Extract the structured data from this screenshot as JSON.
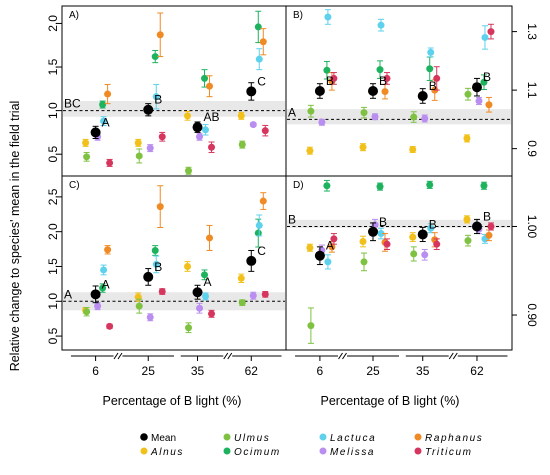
{
  "chart_data": {
    "type": "scatter",
    "ylabel": "Relative change to species' mean in the field trial",
    "xlabel": "Percentage of B light (%)",
    "x_categories": [
      "6",
      "25",
      "35",
      "62"
    ],
    "legend": [
      {
        "name": "Mean",
        "color": "#000000"
      },
      {
        "name": "Alnus",
        "color": "#f2c01a"
      },
      {
        "name": "Ulmus",
        "color": "#7fc242"
      },
      {
        "name": "Ocimum",
        "color": "#1db35e"
      },
      {
        "name": "Lactuca",
        "color": "#5ed1ec"
      },
      {
        "name": "Melissa",
        "color": "#b98ef0"
      },
      {
        "name": "Raphanus",
        "color": "#f08a24"
      },
      {
        "name": "Triticum",
        "color": "#d6365e"
      }
    ],
    "panels": [
      {
        "label": "A)",
        "ylim": [
          0.25,
          2.2
        ],
        "y_ticks": [
          0.5,
          1.0,
          1.5,
          2.0
        ],
        "tick_labels": [
          "0.5",
          "1.0",
          "1.5",
          "2.0"
        ],
        "tick_side": "left",
        "reference_line": 1.0,
        "band": [
          0.93,
          1.11
        ],
        "group_labels": [
          {
            "x": "6",
            "text": "A",
            "pos": "right"
          },
          {
            "x": "6",
            "text": "BC",
            "pos": "band"
          },
          {
            "x": "25",
            "text": "B",
            "pos": "right"
          },
          {
            "x": "35",
            "text": "AB",
            "pos": "right"
          },
          {
            "x": "62",
            "text": "C",
            "pos": "right"
          }
        ],
        "series": [
          {
            "name": "Mean",
            "values": [
              0.75,
              1.01,
              0.81,
              1.22
            ],
            "errors": [
              0.07,
              0.07,
              0.06,
              0.1
            ]
          },
          {
            "name": "Alnus",
            "values": [
              0.63,
              0.63,
              0.94,
              0.94
            ],
            "errors": [
              0.04,
              0.04,
              0.05,
              0.04
            ]
          },
          {
            "name": "Ulmus",
            "values": [
              0.47,
              0.48,
              0.31,
              0.61
            ],
            "errors": [
              0.05,
              0.08,
              0.04,
              0.04
            ]
          },
          {
            "name": "Ocimum",
            "values": [
              1.07,
              1.62,
              1.37,
              1.96
            ],
            "errors": [
              0.04,
              0.07,
              0.1,
              0.18
            ]
          },
          {
            "name": "Lactuca",
            "values": [
              0.88,
              1.16,
              0.78,
              1.59
            ],
            "errors": [
              0.05,
              0.14,
              0.06,
              0.12
            ]
          },
          {
            "name": "Melissa",
            "values": [
              0.7,
              0.57,
              0.7,
              0.84
            ],
            "errors": [
              0.04,
              0.04,
              0.04,
              0.02
            ]
          },
          {
            "name": "Raphanus",
            "values": [
              1.19,
              1.87,
              1.28,
              1.79
            ],
            "errors": [
              0.11,
              0.25,
              0.12,
              0.15
            ]
          },
          {
            "name": "Triticum",
            "values": [
              0.4,
              0.7,
              0.58,
              0.77
            ],
            "errors": [
              0.04,
              0.05,
              0.06,
              0.06
            ]
          }
        ]
      },
      {
        "label": "B)",
        "ylim": [
          0.8065,
          1.3875
        ],
        "y_ticks": [
          0.9,
          1.1,
          1.3
        ],
        "tick_labels": [
          "0.9",
          "1.1",
          "1.3"
        ],
        "tick_side": "right",
        "reference_line": 1.0,
        "band": [
          0.983,
          1.035
        ],
        "group_labels": [
          {
            "x": "6",
            "text": "A",
            "pos": "band"
          },
          {
            "x": "6",
            "text": "B",
            "pos": "right"
          },
          {
            "x": "25",
            "text": "B",
            "pos": "right"
          },
          {
            "x": "35",
            "text": "B",
            "pos": "right"
          },
          {
            "x": "62",
            "text": "B",
            "pos": "right"
          }
        ],
        "series": [
          {
            "name": "Mean",
            "values": [
              1.097,
              1.097,
              1.08,
              1.11
            ],
            "errors": [
              0.025,
              0.025,
              0.025,
              0.03
            ]
          },
          {
            "name": "Alnus",
            "values": [
              0.893,
              0.905,
              0.897,
              0.935
            ],
            "errors": [
              0.012,
              0.012,
              0.01,
              0.012
            ]
          },
          {
            "name": "Ulmus",
            "values": [
              1.028,
              1.023,
              1.008,
              1.086
            ],
            "errors": [
              0.02,
              0.018,
              0.018,
              0.02
            ]
          },
          {
            "name": "Ocimum",
            "values": [
              1.168,
              1.17,
              1.173,
              1.127
            ],
            "errors": [
              0.03,
              0.03,
              0.04,
              0.025
            ]
          },
          {
            "name": "Lactuca",
            "values": [
              1.35,
              1.322,
              1.229,
              1.28
            ],
            "errors": [
              0.025,
              0.02,
              0.015,
              0.04
            ]
          },
          {
            "name": "Melissa",
            "values": [
              0.99,
              1.009,
              1.003,
              1.063
            ],
            "errors": [
              0.01,
              0.01,
              0.012,
              0.012
            ]
          },
          {
            "name": "Raphanus",
            "values": [
              1.13,
              1.095,
              1.1,
              1.05
            ],
            "errors": [
              0.03,
              0.025,
              0.035,
              0.025
            ]
          },
          {
            "name": "Triticum",
            "values": [
              1.14,
              1.14,
              1.14,
              1.3
            ],
            "errors": [
              0.02,
              0.02,
              0.04,
              0.025
            ]
          }
        ]
      },
      {
        "label": "C)",
        "ylim": [
          0.3,
          2.8
        ],
        "y_ticks": [
          0.5,
          1.0,
          1.5,
          2.0,
          2.5
        ],
        "tick_labels": [
          "0.5",
          "1.0",
          "1.5",
          "2.0",
          "2.5"
        ],
        "tick_side": "left",
        "reference_line": 1.0,
        "band": [
          0.87,
          1.13
        ],
        "group_labels": [
          {
            "x": "6",
            "text": "A",
            "pos": "band"
          },
          {
            "x": "6",
            "text": "A",
            "pos": "right"
          },
          {
            "x": "25",
            "text": "B",
            "pos": "right"
          },
          {
            "x": "35",
            "text": "A",
            "pos": "right"
          },
          {
            "x": "62",
            "text": "C",
            "pos": "right"
          }
        ],
        "series": [
          {
            "name": "Mean",
            "values": [
              1.1,
              1.35,
              1.13,
              1.58
            ],
            "errors": [
              0.12,
              0.12,
              0.1,
              0.15
            ]
          },
          {
            "name": "Alnus",
            "values": [
              0.87,
              1.06,
              1.5,
              1.33
            ],
            "errors": [
              0.04,
              0.06,
              0.07,
              0.06
            ]
          },
          {
            "name": "Ulmus",
            "values": [
              0.85,
              0.93,
              0.62,
              0.98
            ],
            "errors": [
              0.06,
              0.1,
              0.07,
              0.04
            ]
          },
          {
            "name": "Ocimum",
            "values": [
              1.19,
              1.73,
              1.38,
              1.98
            ],
            "errors": [
              0.06,
              0.07,
              0.07,
              0.2
            ]
          },
          {
            "name": "Lactuca",
            "values": [
              1.45,
              1.53,
              1.07,
              2.09
            ],
            "errors": [
              0.07,
              0.12,
              0.05,
              0.15
            ]
          },
          {
            "name": "Melissa",
            "values": [
              0.93,
              0.77,
              0.9,
              1.08
            ],
            "errors": [
              0.05,
              0.05,
              0.07,
              0.05
            ]
          },
          {
            "name": "Raphanus",
            "values": [
              1.74,
              2.36,
              1.91,
              2.44
            ],
            "errors": [
              0.06,
              0.3,
              0.18,
              0.12
            ]
          },
          {
            "name": "Triticum",
            "values": [
              0.64,
              1.14,
              0.82,
              1.1
            ],
            "errors": [
              0.03,
              0.04,
              0.05,
              0.04
            ]
          }
        ]
      },
      {
        "label": "D)",
        "ylim": [
          0.8605,
          1.057
        ],
        "y_ticks": [
          0.9,
          1.0
        ],
        "tick_labels": [
          "0.90",
          "1.00"
        ],
        "tick_side": "right",
        "reference_line": 1.0,
        "band": [
          0.9985,
          1.0075
        ],
        "group_labels": [
          {
            "x": "6",
            "text": "B",
            "pos": "band"
          },
          {
            "x": "6",
            "text": "A",
            "pos": "right"
          },
          {
            "x": "25",
            "text": "B",
            "pos": "right"
          },
          {
            "x": "35",
            "text": "B",
            "pos": "right"
          },
          {
            "x": "62",
            "text": "B",
            "pos": "right"
          }
        ],
        "series": [
          {
            "name": "Mean",
            "values": [
              0.967,
              0.994,
              0.991,
              1.0
            ],
            "errors": [
              0.01,
              0.01,
              0.008,
              0.008
            ]
          },
          {
            "name": "Alnus",
            "values": [
              0.976,
              0.983,
              0.988,
              1.008
            ],
            "errors": [
              0.004,
              0.006,
              0.005,
              0.004
            ]
          },
          {
            "name": "Ulmus",
            "values": [
              0.888,
              0.96,
              0.969,
              0.984
            ],
            "errors": [
              0.02,
              0.01,
              0.008,
              0.006
            ]
          },
          {
            "name": "Ocimum",
            "values": [
              1.046,
              1.045,
              1.047,
              1.046
            ],
            "errors": [
              0.006,
              0.004,
              0.004,
              0.004
            ]
          },
          {
            "name": "Lactuca",
            "values": [
              0.96,
              0.992,
              0.998,
              0.986
            ],
            "errors": [
              0.008,
              0.006,
              0.005,
              0.005
            ]
          },
          {
            "name": "Melissa",
            "values": [
              0.973,
              1.002,
              0.968,
              0.997
            ],
            "errors": [
              0.006,
              0.006,
              0.006,
              0.005
            ]
          },
          {
            "name": "Raphanus",
            "values": [
              0.977,
              0.982,
              0.985,
              0.99
            ],
            "errors": [
              0.006,
              0.01,
              0.008,
              0.006
            ]
          },
          {
            "name": "Triticum",
            "values": [
              0.986,
              0.98,
              0.98,
              1.0
            ],
            "errors": [
              0.006,
              0.006,
              0.006,
              0.004
            ]
          }
        ]
      }
    ]
  }
}
